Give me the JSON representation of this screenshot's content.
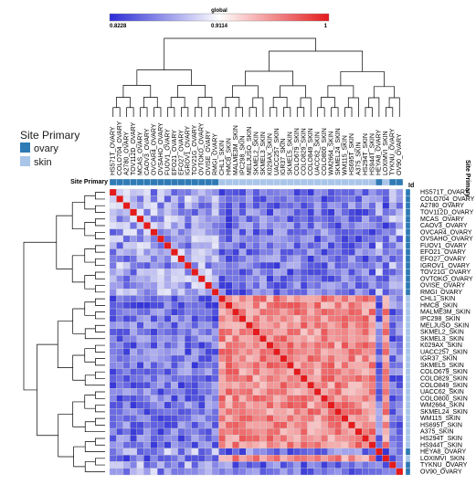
{
  "chart_data": {
    "type": "heatmap",
    "title": "",
    "colorbar": {
      "title": "global",
      "min_label": "0.8228",
      "mid_label": "0.9114",
      "max_label": "1",
      "min": 0.8228,
      "mid": 0.9114,
      "max": 1,
      "low_color": "#2b2bd6",
      "mid_color": "#ffffff",
      "high_color": "#e41a1c"
    },
    "annotation": {
      "column_header": "Site Primary",
      "row_header_left": "Id",
      "row_header_right": "Site Primary",
      "legend_title": "Site Primary",
      "categories": [
        {
          "name": "ovary",
          "color": "#2e7ab5"
        },
        {
          "name": "skin",
          "color": "#a9c5e8"
        }
      ]
    },
    "labels": [
      "HS571T_OVARY",
      "COLO704_OVARY",
      "A2780_OVARY",
      "TOV112D_OVARY",
      "MCAS_OVARY",
      "CAOV3_OVARY",
      "OVCAR4_OVARY",
      "OVSAHO_OVARY",
      "FUOV1_OVARY",
      "EFO21_OVARY",
      "EFO27_OVARY",
      "IGROV1_OVARY",
      "TOV21G_OVARY",
      "OVTOKO_OVARY",
      "OVISE_OVARY",
      "RMGI_OVARY",
      "CHL1_SKIN",
      "HMCB_SKIN",
      "MALME3M_SKIN",
      "IPC298_SKIN",
      "MELJUSO_SKIN",
      "SKMEL2_SKIN",
      "SKMEL3_SKIN",
      "K029AX_SKIN",
      "UACC257_SKIN",
      "IGR37_SKIN",
      "SKMEL5_SKIN",
      "COLO679_SKIN",
      "COLO829_SKIN",
      "COLO849_SKIN",
      "UACC62_SKIN",
      "COLO800_SKIN",
      "WM2664_SKIN",
      "SKMEL24_SKIN",
      "WM115_SKIN",
      "HS695T_SKIN",
      "A375_SKIN",
      "HS294T_SKIN",
      "HS944T_SKIN",
      "HEYA8_OVARY",
      "LOXIMVI_SKIN",
      "TYKNU_OVARY",
      "OV90_OVARY"
    ],
    "site_primary": [
      "ovary",
      "ovary",
      "ovary",
      "ovary",
      "ovary",
      "ovary",
      "ovary",
      "ovary",
      "ovary",
      "ovary",
      "ovary",
      "ovary",
      "ovary",
      "ovary",
      "ovary",
      "ovary",
      "skin",
      "skin",
      "skin",
      "skin",
      "skin",
      "skin",
      "skin",
      "skin",
      "skin",
      "skin",
      "skin",
      "skin",
      "skin",
      "skin",
      "skin",
      "skin",
      "skin",
      "skin",
      "skin",
      "skin",
      "skin",
      "skin",
      "skin",
      "ovary",
      "skin",
      "ovary",
      "ovary"
    ],
    "value_range": [
      0.8228,
      1
    ],
    "note_values": ""
  }
}
